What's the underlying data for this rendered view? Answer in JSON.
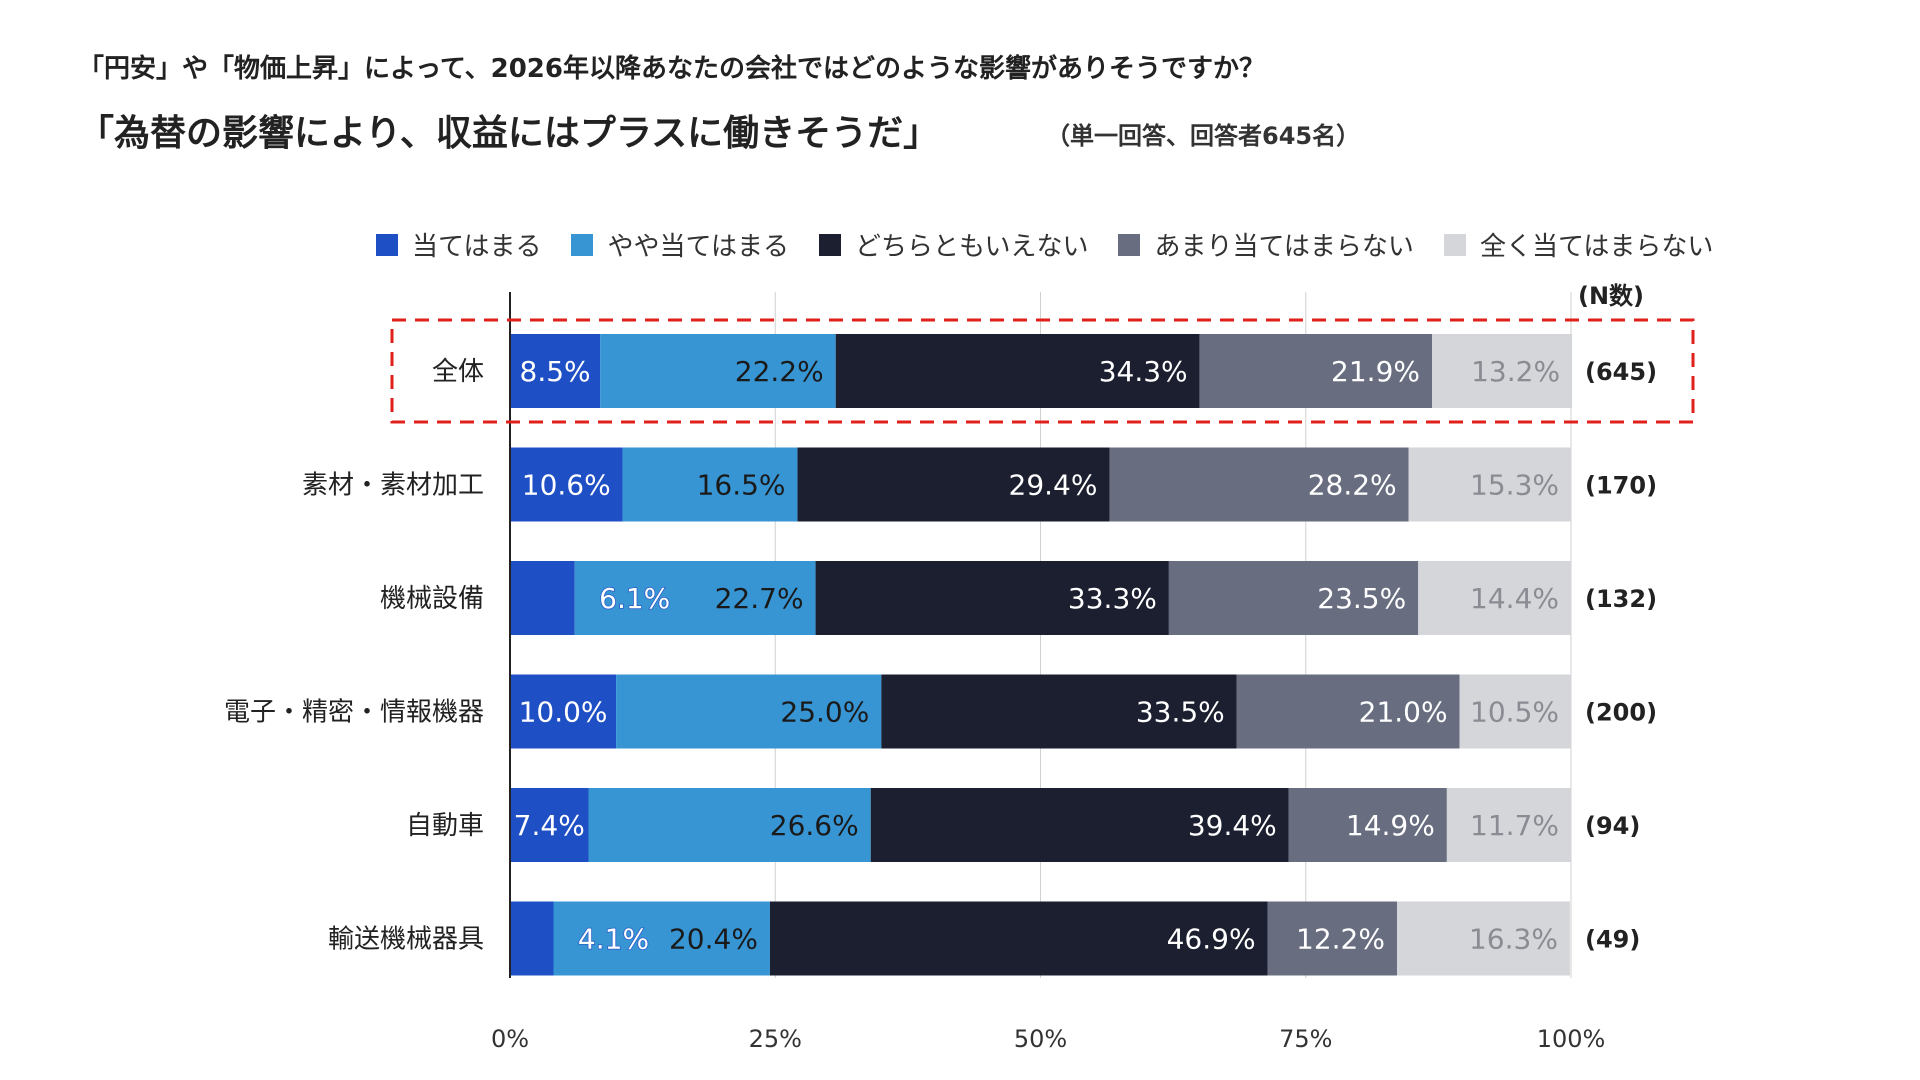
{
  "header": {
    "question": "「円安」や「物価上昇」によって、2026年以降あなたの会社ではどのような影響がありそうですか？",
    "headline": "「為替の影響により、収益にはプラスに働きそうだ」",
    "note": "（単一回答、回答者645名）"
  },
  "chart_data": {
    "type": "bar",
    "orientation": "horizontal",
    "stacked": true,
    "normalized": true,
    "title": "「為替の影響により、収益にはプラスに働きそうだ」",
    "categories": [
      "全体",
      "素材・素材加工",
      "機械設備",
      "電子・精密・情報機器",
      "自動車",
      "輸送機械器具"
    ],
    "n_header": "(N数)",
    "n_values": [
      "(645)",
      "(170)",
      "(132)",
      "(200)",
      "(94)",
      "(49)"
    ],
    "series": [
      {
        "name": "当てはまる",
        "color": "#1f4fc4",
        "label_color": "#ffffff",
        "values": [
          8.5,
          10.6,
          6.1,
          10.0,
          7.4,
          4.1
        ],
        "labels": [
          "8.5%",
          "10.6%",
          "6.1%",
          "10.0%",
          "7.4%",
          "4.1%"
        ],
        "offbar": [
          false,
          false,
          true,
          false,
          false,
          true
        ]
      },
      {
        "name": "やや当てはまる",
        "color": "#3795d3",
        "label_color": "#1a1a1a",
        "values": [
          22.2,
          16.5,
          22.7,
          25.0,
          26.6,
          20.4
        ],
        "labels": [
          "22.2%",
          "16.5%",
          "22.7%",
          "25.0%",
          "26.6%",
          "20.4%"
        ]
      },
      {
        "name": "どちらともいえない",
        "color": "#1c1f30",
        "label_color": "#ffffff",
        "values": [
          34.3,
          29.4,
          33.3,
          33.5,
          39.4,
          46.9
        ],
        "labels": [
          "34.3%",
          "29.4%",
          "33.3%",
          "33.5%",
          "39.4%",
          "46.9%"
        ]
      },
      {
        "name": "あまり当てはまらない",
        "color": "#686d80",
        "label_color": "#ffffff",
        "values": [
          21.9,
          28.2,
          23.5,
          21.0,
          14.9,
          12.2
        ],
        "labels": [
          "21.9%",
          "28.2%",
          "23.5%",
          "21.0%",
          "14.9%",
          "12.2%"
        ]
      },
      {
        "name": "全く当てはまらない",
        "color": "#d5d6d9",
        "label_color": "#8a8c93",
        "values": [
          13.2,
          15.3,
          14.4,
          10.5,
          11.7,
          16.3
        ],
        "labels": [
          "13.2%",
          "15.3%",
          "14.4%",
          "10.5%",
          "11.7%",
          "16.3%"
        ]
      }
    ],
    "xlim": [
      0,
      100
    ],
    "xticks": [
      "0%",
      "25%",
      "50%",
      "75%",
      "100%"
    ],
    "highlight_category": "全体",
    "highlight_color": "#e0201b",
    "axis_color": "#222222",
    "grid_color": "#d0d0d0",
    "legend_position": "top"
  }
}
